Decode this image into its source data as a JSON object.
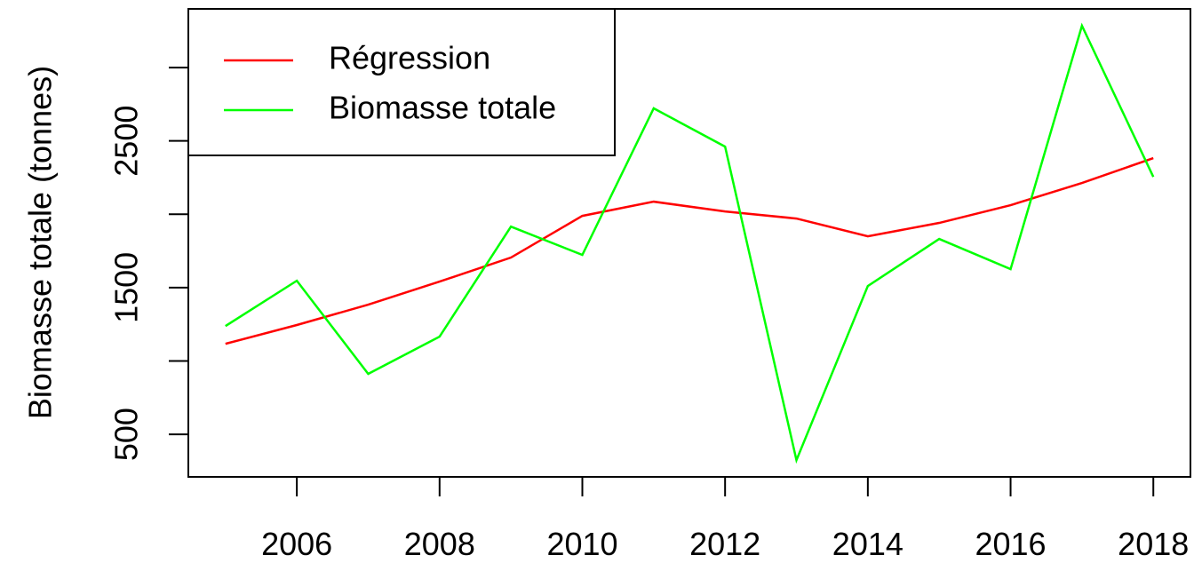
{
  "chart_data": {
    "type": "line",
    "ylabel": "Biomasse totale (tonnes)",
    "x": [
      2005,
      2006,
      2007,
      2008,
      2009,
      2010,
      2011,
      2012,
      2013,
      2014,
      2015,
      2016,
      2017,
      2018
    ],
    "series": [
      {
        "name": "Régression",
        "color": "#ff0000",
        "values": [
          1117,
          1245,
          1384,
          1541,
          1705,
          1989,
          2086,
          2019,
          1971,
          1850,
          1941,
          2062,
          2213,
          2383
        ]
      },
      {
        "name": "Biomasse totale",
        "color": "#00ff00",
        "values": [
          1238,
          1547,
          912,
          1166,
          1916,
          1723,
          2722,
          2461,
          324,
          1511,
          1832,
          1626,
          3285,
          2255
        ]
      }
    ],
    "xlim": [
      2004.48,
      2018.52
    ],
    "xticks": [
      2006,
      2008,
      2010,
      2012,
      2014,
      2016,
      2018
    ],
    "ylim": [
      210,
      3400
    ],
    "yticks": [
      500,
      {
        "value": 1000,
        "label": null
      },
      1500,
      {
        "value": 2000,
        "label": null
      },
      2500,
      {
        "value": 3000,
        "label": null
      }
    ],
    "legend": "top-left"
  }
}
